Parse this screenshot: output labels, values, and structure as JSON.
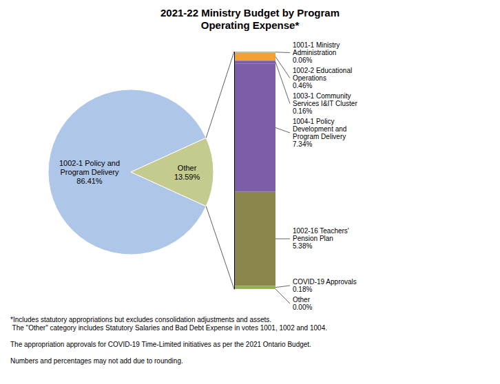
{
  "chart_data": [
    {
      "type": "pie",
      "title": "2021-22 Ministry Budget by Program\nOperating Expense*",
      "categories": [
        "1002-1 Policy and\nProgram Delivery",
        "Other"
      ],
      "values": [
        86.41,
        13.59
      ],
      "value_labels": [
        "86.41%",
        "13.59%"
      ],
      "colors": [
        "#aec6e8",
        "#c5ca8e"
      ],
      "data_labels": true,
      "annotations": [
        "*Includes statutory appropriations but excludes consolidation adjustments and assets.\n The \"Other\" category includes Statutory Salaries and Bad Debt Expense in votes 1001, 1002 and 1004.\n\nThe appropriation approvals for COVID-19 Time-Limited initiatives as per the 2021 Ontario Budget.\n\nNumbers and percentages may not add due to rounding."
      ]
    },
    {
      "type": "bar",
      "stacked": true,
      "categories": [
        null
      ],
      "series": [
        {
          "name": "1001-1 Ministry\nAdministration",
          "color": "#5bc8f5",
          "values": [
            0.06
          ],
          "value_labels": [
            "0.06%"
          ]
        },
        {
          "name": "1002-2 Educational\nOperations",
          "color": "#f5a033",
          "values": [
            0.46
          ],
          "value_labels": [
            "0.46%"
          ]
        },
        {
          "name": "1003-1 Community\nServices I&IT Cluster",
          "color": "#7b5ea7",
          "values": [
            0.16
          ],
          "value_labels": [
            "0.16%"
          ]
        },
        {
          "name": "1004-1 Policy\nDevelopment and\nProgram Delivery",
          "color": "#7b5ea7",
          "values": [
            7.34
          ],
          "value_labels": [
            "7.34%"
          ]
        },
        {
          "name": "1002-16 Teachers'\nPension Plan",
          "color": "#8b864b",
          "values": [
            5.38
          ],
          "value_labels": [
            "5.38%"
          ]
        },
        {
          "name": "COVID-19 Approvals",
          "color": "#90b050",
          "values": [
            0.18
          ],
          "value_labels": [
            "0.18%"
          ]
        },
        {
          "name": "Other",
          "color": "#90b050",
          "values": [
            0.005
          ],
          "value_labels": [
            "0.00%"
          ]
        }
      ],
      "ylim": [
        0,
        13.585
      ],
      "tick_labels": false,
      "data_labels": true
    }
  ]
}
